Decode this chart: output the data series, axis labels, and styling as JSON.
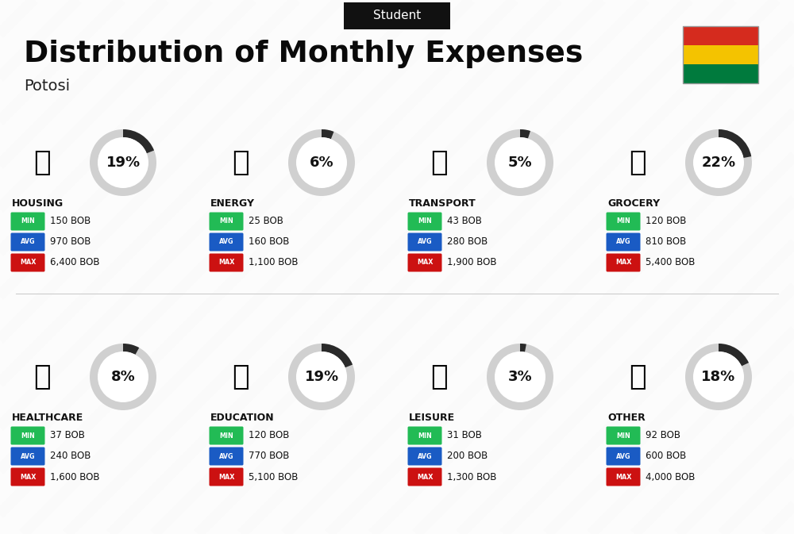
{
  "title": "Distribution of Monthly Expenses",
  "subtitle": "Student",
  "location": "Potosi",
  "bg_color": "#efefef",
  "header_bg": "#111111",
  "header_text_color": "#ffffff",
  "title_color": "#0a0a0a",
  "location_color": "#222222",
  "categories": [
    {
      "name": "HOUSING",
      "percent": 19,
      "min": "150 BOB",
      "avg": "970 BOB",
      "max": "6,400 BOB",
      "row": 0,
      "col": 0
    },
    {
      "name": "ENERGY",
      "percent": 6,
      "min": "25 BOB",
      "avg": "160 BOB",
      "max": "1,100 BOB",
      "row": 0,
      "col": 1
    },
    {
      "name": "TRANSPORT",
      "percent": 5,
      "min": "43 BOB",
      "avg": "280 BOB",
      "max": "1,900 BOB",
      "row": 0,
      "col": 2
    },
    {
      "name": "GROCERY",
      "percent": 22,
      "min": "120 BOB",
      "avg": "810 BOB",
      "max": "5,400 BOB",
      "row": 0,
      "col": 3
    },
    {
      "name": "HEALTHCARE",
      "percent": 8,
      "min": "37 BOB",
      "avg": "240 BOB",
      "max": "1,600 BOB",
      "row": 1,
      "col": 0
    },
    {
      "name": "EDUCATION",
      "percent": 19,
      "min": "120 BOB",
      "avg": "770 BOB",
      "max": "5,100 BOB",
      "row": 1,
      "col": 1
    },
    {
      "name": "LEISURE",
      "percent": 3,
      "min": "31 BOB",
      "avg": "200 BOB",
      "max": "1,300 BOB",
      "row": 1,
      "col": 2
    },
    {
      "name": "OTHER",
      "percent": 18,
      "min": "92 BOB",
      "avg": "600 BOB",
      "max": "4,000 BOB",
      "row": 1,
      "col": 3
    }
  ],
  "min_color": "#22bb55",
  "avg_color": "#1a5bc4",
  "max_color": "#cc1111",
  "donut_fg": "#2a2a2a",
  "donut_bg": "#d0d0d0",
  "flag_colors": [
    "#d52b1e",
    "#f4c300",
    "#007a3d"
  ],
  "stripe_color": "#dddddd",
  "white_panel": "#f8f8f8"
}
